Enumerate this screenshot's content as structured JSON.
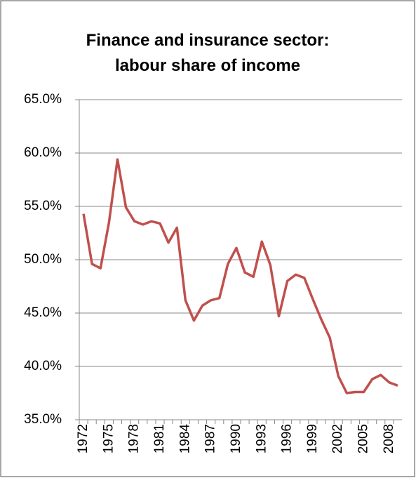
{
  "chart_data": {
    "type": "line",
    "title": "Finance and insurance sector: labour share of income",
    "categories": [
      "1972",
      null,
      null,
      "1975",
      null,
      null,
      "1978",
      null,
      null,
      "1981",
      null,
      null,
      "1984",
      null,
      null,
      "1987",
      null,
      null,
      "1990",
      null,
      null,
      "1993",
      null,
      null,
      "1996",
      null,
      null,
      "1999",
      null,
      null,
      "2002",
      null,
      null,
      "2005",
      null,
      null,
      "2008",
      null
    ],
    "series": [
      {
        "color": "#c0504d",
        "values": [
          54.3,
          49.6,
          49.2,
          53.5,
          59.4,
          54.9,
          53.6,
          53.3,
          53.6,
          53.4,
          51.6,
          53.0,
          46.2,
          44.3,
          45.7,
          46.2,
          46.4,
          49.6,
          51.1,
          48.8,
          48.4,
          51.7,
          49.5,
          44.7,
          48.0,
          48.6,
          48.3,
          46.3,
          44.4,
          42.7,
          39.1,
          37.5,
          37.6,
          37.6,
          38.8,
          39.2,
          38.5,
          38.2
        ]
      }
    ],
    "ylim": [
      35,
      65
    ],
    "yticks": [
      {
        "value": 35,
        "label": "35.0%"
      },
      {
        "value": 40,
        "label": "40.0%"
      },
      {
        "value": 45,
        "label": "45.0%"
      },
      {
        "value": 50,
        "label": "50.0%"
      },
      {
        "value": 55,
        "label": "55.0%"
      },
      {
        "value": 60,
        "label": "60.0%"
      },
      {
        "value": 65,
        "label": "65.0%"
      }
    ],
    "grid": true
  }
}
